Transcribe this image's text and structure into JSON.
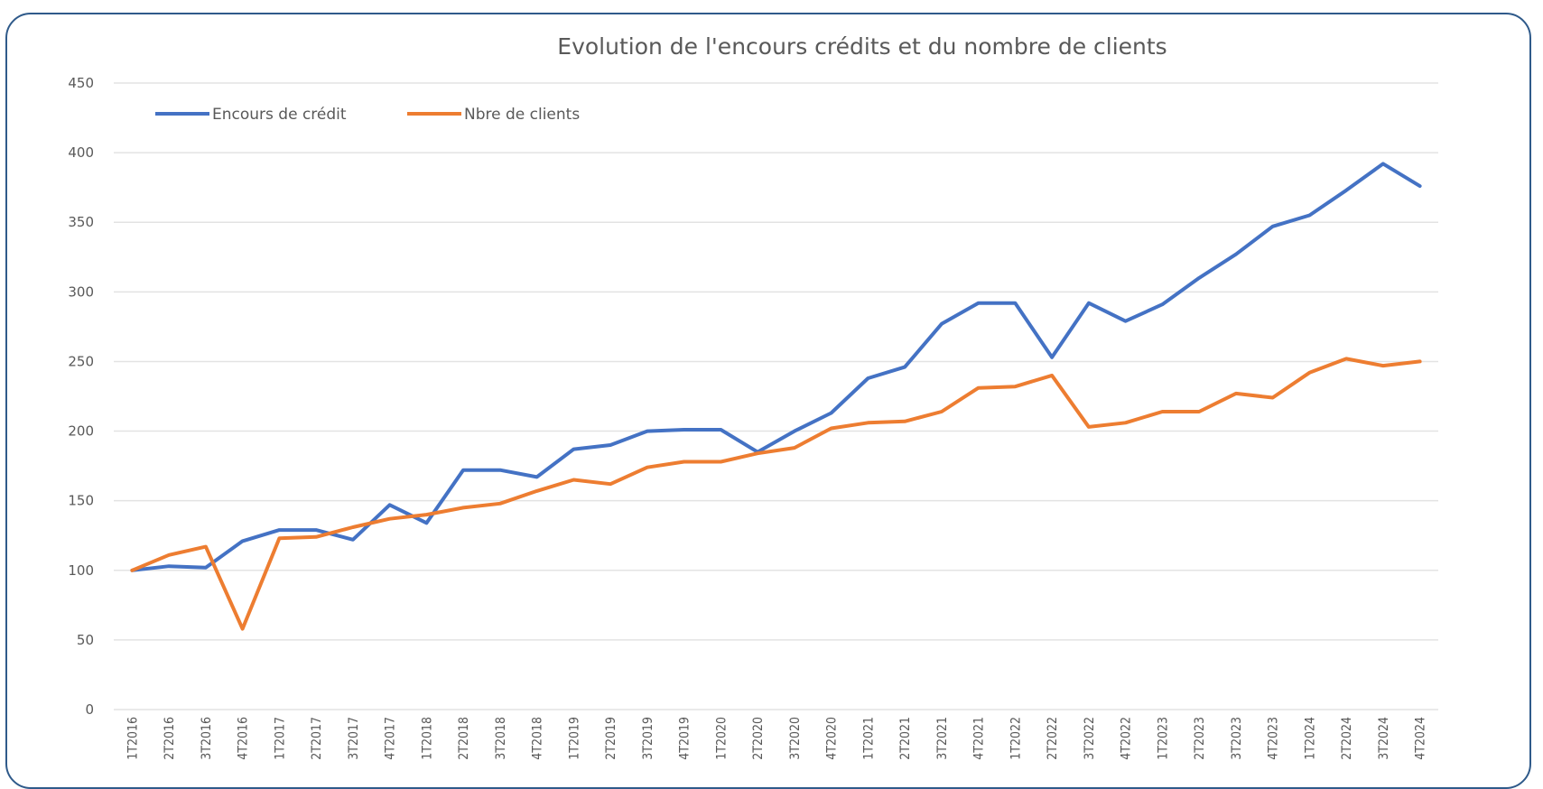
{
  "chart_data": {
    "type": "line",
    "title": "Evolution de l'encours crédits et du nombre de clients",
    "xlabel": "",
    "ylabel": "",
    "ylim": [
      0,
      450
    ],
    "yticks": [
      0,
      50,
      100,
      150,
      200,
      250,
      300,
      350,
      400,
      450
    ],
    "grid": true,
    "legend_position": "top-left",
    "categories": [
      "1T2016",
      "2T2016",
      "3T2016",
      "4T2016",
      "1T2017",
      "2T2017",
      "3T2017",
      "4T2017",
      "1T2018",
      "2T2018",
      "3T2018",
      "4T2018",
      "1T2019",
      "2T2019",
      "3T2019",
      "4T2019",
      "1T2020",
      "2T2020",
      "3T2020",
      "4T2020",
      "1T2021",
      "2T2021",
      "3T2021",
      "4T2021",
      "1T2022",
      "2T2022",
      "3T2022",
      "4T2022",
      "1T2023",
      "2T2023",
      "3T2023",
      "4T2023",
      "1T2024",
      "2T2024",
      "3T2024",
      "4T2024"
    ],
    "series": [
      {
        "name": "Encours de crédit",
        "color": "#4472c4",
        "values": [
          100,
          103,
          102,
          121,
          129,
          129,
          122,
          147,
          134,
          172,
          172,
          167,
          187,
          190,
          200,
          201,
          201,
          185,
          200,
          213,
          238,
          246,
          277,
          292,
          292,
          253,
          292,
          279,
          291,
          310,
          327,
          347,
          355,
          373,
          392,
          376
        ]
      },
      {
        "name": "Nbre de clients",
        "color": "#ed7d31",
        "values": [
          100,
          111,
          117,
          58,
          123,
          124,
          131,
          137,
          140,
          145,
          148,
          157,
          165,
          162,
          174,
          178,
          178,
          184,
          188,
          202,
          206,
          207,
          214,
          231,
          232,
          240,
          203,
          206,
          214,
          214,
          227,
          224,
          242,
          252,
          247,
          250
        ]
      }
    ]
  }
}
